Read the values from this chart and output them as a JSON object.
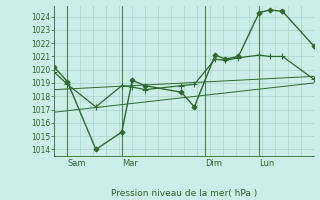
{
  "title": "",
  "xlabel": "Pression niveau de la mer( hPa )",
  "background_color": "#cceee8",
  "grid_color": "#aad4cc",
  "line_color": "#2d6a2d",
  "ylim": [
    1013.5,
    1024.8
  ],
  "xlim": [
    0,
    100
  ],
  "yticks": [
    1014,
    1015,
    1016,
    1017,
    1018,
    1019,
    1020,
    1021,
    1022,
    1023,
    1024
  ],
  "day_ticks": [
    {
      "x": 5,
      "label": "Sam"
    },
    {
      "x": 26,
      "label": "Mar"
    },
    {
      "x": 58,
      "label": "Dim"
    },
    {
      "x": 79,
      "label": "Lun"
    }
  ],
  "day_lines": [
    5,
    26,
    58,
    79
  ],
  "series": [
    {
      "x": [
        0,
        5,
        16,
        26,
        30,
        35,
        49,
        54,
        62,
        66,
        71,
        79,
        83,
        88,
        100
      ],
      "y": [
        1020.2,
        1019.1,
        1014.0,
        1015.3,
        1019.2,
        1018.8,
        1018.3,
        1017.2,
        1021.1,
        1020.8,
        1021.0,
        1024.3,
        1024.5,
        1024.4,
        1021.8
      ],
      "marker": "D",
      "markersize": 2.5,
      "linewidth": 1.0
    },
    {
      "x": [
        0,
        5,
        16,
        26,
        30,
        35,
        49,
        54,
        62,
        66,
        71,
        79,
        83,
        88,
        100
      ],
      "y": [
        1019.8,
        1018.9,
        1017.2,
        1018.8,
        1018.7,
        1018.5,
        1018.8,
        1018.9,
        1020.8,
        1020.7,
        1020.9,
        1021.1,
        1021.0,
        1021.0,
        1019.3
      ],
      "marker": "+",
      "markersize": 4,
      "linewidth": 0.9
    },
    {
      "x": [
        0,
        100
      ],
      "y": [
        1018.5,
        1019.5
      ],
      "marker": null,
      "markersize": 0,
      "linewidth": 0.7
    },
    {
      "x": [
        0,
        100
      ],
      "y": [
        1016.8,
        1019.0
      ],
      "marker": null,
      "markersize": 0,
      "linewidth": 0.7
    }
  ]
}
